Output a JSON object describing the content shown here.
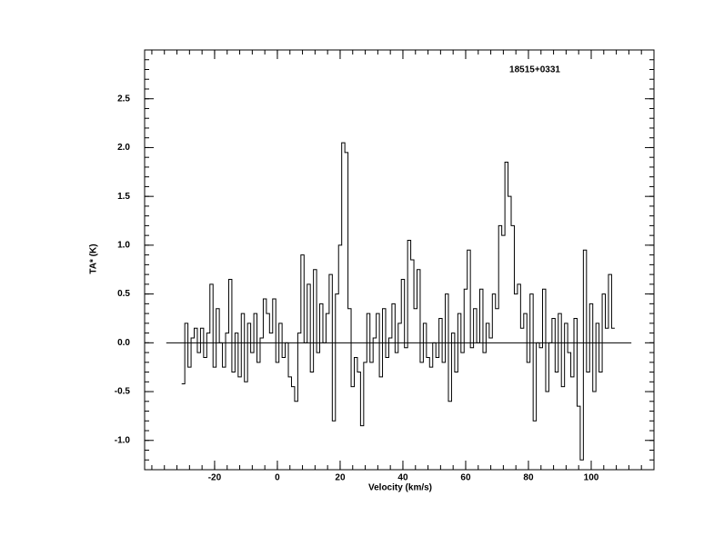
{
  "chart_data": {
    "type": "step",
    "title": "18515+0331",
    "x_label": "Velocity (km/s)",
    "y_label": "TA* (K)",
    "xlim": [
      -42.3,
      120
    ],
    "ylim": [
      -1.3,
      3.0
    ],
    "xticks": [
      -20,
      0,
      20,
      40,
      60,
      80,
      100
    ],
    "yticks": [
      {
        "value": -1.0,
        "label": "-1.0"
      },
      {
        "value": -0.5,
        "label": "-0.5"
      },
      {
        "value": 0,
        "label": "0.0"
      },
      {
        "value": 0.5,
        "label": "0.5"
      },
      {
        "value": 1.0,
        "label": "1.0"
      },
      {
        "value": 1.5,
        "label": "1.5"
      },
      {
        "value": 2.0,
        "label": "2.0"
      },
      {
        "value": 2.5,
        "label": "2.5"
      }
    ],
    "x_minor_divisions": 5,
    "y_minor_divisions": 5,
    "baseline": {
      "y": 0,
      "x": [
        -35.4,
        112.8
      ]
    },
    "color": "#000000",
    "x": [
      -30,
      -29,
      -28,
      -27,
      -26,
      -25,
      -24,
      -23,
      -22,
      -21,
      -20,
      -19,
      -18,
      -17,
      -16,
      -15,
      -14,
      -13,
      -12,
      -11,
      -10,
      -9,
      -8,
      -7,
      -6,
      -5,
      -4,
      -3,
      -2,
      -1,
      0,
      1,
      2,
      3,
      4,
      5,
      6,
      7,
      8,
      9,
      10,
      11,
      12,
      13,
      14,
      15,
      16,
      17,
      18,
      19,
      20,
      21,
      22,
      23,
      24,
      25,
      26,
      27,
      28,
      29,
      30,
      31,
      32,
      33,
      34,
      35,
      36,
      37,
      38,
      39,
      40,
      41,
      42,
      43,
      44,
      45,
      46,
      47,
      48,
      49,
      50,
      51,
      52,
      53,
      54,
      55,
      56,
      57,
      58,
      59,
      60,
      61,
      62,
      63,
      64,
      65,
      66,
      67,
      68,
      69,
      70,
      71,
      72,
      73,
      74,
      75,
      76,
      77,
      78,
      79,
      80,
      81,
      82,
      83,
      84,
      85,
      86,
      87,
      88,
      89,
      90,
      91,
      92,
      93,
      94,
      95,
      96,
      97,
      98,
      99,
      100,
      101,
      102,
      103,
      104,
      105,
      106,
      107
    ],
    "values": [
      -0.42,
      0.2,
      -0.25,
      0.05,
      0.15,
      -0.1,
      0.15,
      -0.15,
      0.1,
      0.6,
      -0.25,
      0.35,
      0.0,
      -0.25,
      0.1,
      0.65,
      -0.3,
      0.1,
      -0.35,
      0.3,
      -0.4,
      0.2,
      -0.1,
      0.3,
      -0.2,
      0.05,
      0.45,
      0.3,
      0.1,
      0.45,
      -0.2,
      0.2,
      -0.15,
      0.0,
      -0.35,
      -0.45,
      -0.6,
      0.1,
      0.9,
      0.0,
      0.6,
      -0.3,
      0.75,
      -0.1,
      0.4,
      0.0,
      0.3,
      0.7,
      -0.8,
      0.5,
      1.0,
      2.05,
      1.95,
      0.35,
      -0.45,
      -0.15,
      -0.3,
      -0.85,
      -0.2,
      0.3,
      -0.2,
      0.05,
      0.3,
      -0.35,
      0.35,
      -0.15,
      0.05,
      0.4,
      -0.1,
      0.2,
      0.65,
      -0.05,
      1.05,
      0.85,
      0.35,
      0.75,
      -0.2,
      0.2,
      -0.15,
      -0.25,
      0.0,
      -0.15,
      0.25,
      -0.2,
      0.5,
      -0.6,
      0.1,
      -0.3,
      0.3,
      -0.1,
      0.55,
      0.95,
      -0.05,
      0.35,
      0.0,
      0.55,
      -0.1,
      0.2,
      0.05,
      0.5,
      0.35,
      1.2,
      1.1,
      1.85,
      1.5,
      1.2,
      0.5,
      0.6,
      0.15,
      0.3,
      -0.2,
      0.5,
      -0.8,
      0.0,
      -0.05,
      0.55,
      -0.5,
      0.0,
      0.25,
      -0.3,
      0.3,
      -0.45,
      0.2,
      -0.1,
      -0.35,
      0.25,
      -0.65,
      -1.2,
      0.95,
      -0.3,
      0.4,
      -0.5,
      0.2,
      -0.3,
      0.5,
      0.15,
      0.7,
      0.15
    ]
  }
}
